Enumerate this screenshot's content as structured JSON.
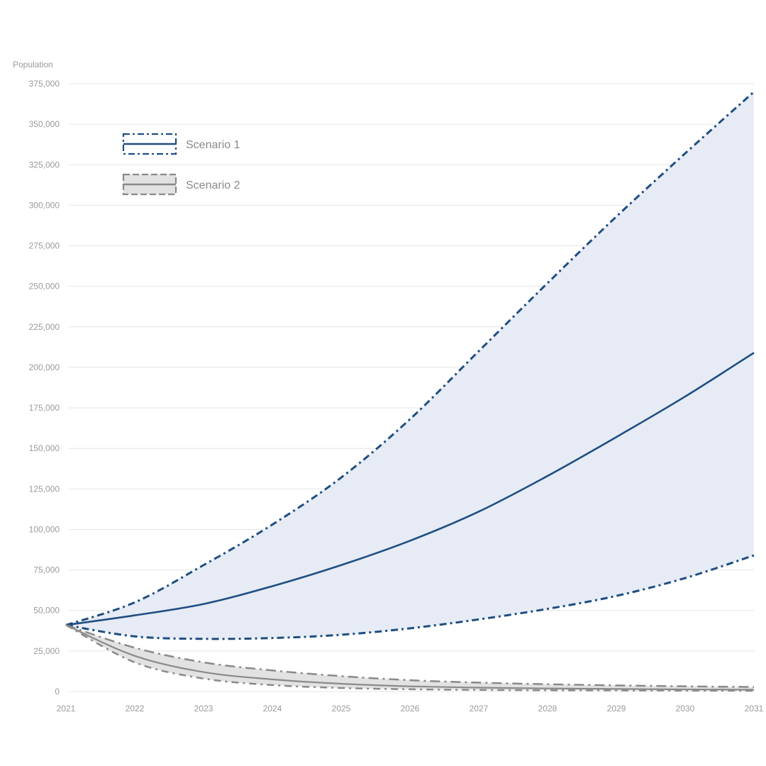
{
  "chart_data": {
    "type": "line",
    "ylabel": "Population",
    "xlabel": "",
    "title": "",
    "xlim": [
      2021,
      2031
    ],
    "ylim": [
      0,
      375000
    ],
    "x_ticks": [
      "2021",
      "2022",
      "2023",
      "2024",
      "2025",
      "2026",
      "2027",
      "2028",
      "2029",
      "2030",
      "2031"
    ],
    "y_ticks": [
      "0",
      "25,000",
      "50,000",
      "75,000",
      "100,000",
      "125,000",
      "150,000",
      "175,000",
      "200,000",
      "225,000",
      "250,000",
      "275,000",
      "300,000",
      "325,000",
      "350,000",
      "375,000"
    ],
    "grid": true,
    "legend_position": "top-left",
    "series": [
      {
        "name": "Scenario 1",
        "color": "#1f4e82",
        "band_color": "#e6ebf5",
        "x": [
          2021,
          2022,
          2023,
          2024,
          2025,
          2026,
          2027,
          2028,
          2029,
          2030,
          2031
        ],
        "values": [
          41000,
          47000,
          54000,
          65000,
          78000,
          93000,
          111000,
          133000,
          157000,
          182000,
          209000
        ],
        "upper": [
          41000,
          55000,
          78000,
          103000,
          132000,
          168000,
          210000,
          252000,
          293000,
          332000,
          370000
        ],
        "lower": [
          41000,
          34000,
          32500,
          33000,
          35000,
          39000,
          44500,
          51000,
          59000,
          70000,
          84000
        ]
      },
      {
        "name": "Scenario 2",
        "color": "#8a8a8a",
        "band_color": "#e2e2e2",
        "x": [
          2021,
          2022,
          2023,
          2024,
          2025,
          2026,
          2027,
          2028,
          2029,
          2030,
          2031
        ],
        "values": [
          41000,
          22000,
          12000,
          7500,
          4800,
          3200,
          2400,
          1900,
          1600,
          1300,
          1100
        ],
        "upper": [
          41000,
          27000,
          18000,
          13000,
          9500,
          7000,
          5500,
          4500,
          3800,
          3200,
          2800
        ],
        "lower": [
          41000,
          18000,
          8000,
          4000,
          2200,
          1400,
          1000,
          800,
          700,
          600,
          500
        ]
      }
    ]
  }
}
